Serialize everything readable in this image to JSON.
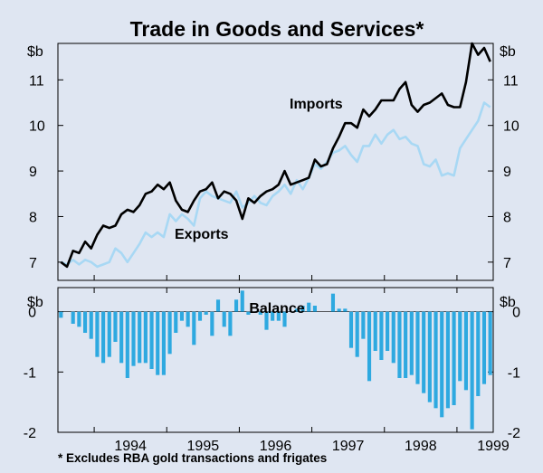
{
  "chart_data": {
    "title": "Trade in Goods and Services*",
    "footnote": "*   Excludes RBA gold transactions and frigates",
    "x_tick_labels": [
      "1994",
      "1995",
      "1996",
      "1997",
      "1998",
      "1999"
    ],
    "x_start": "1993-07",
    "x_end": "1999-07",
    "colors": {
      "imports": "#000000",
      "exports": "#a8d8f4",
      "balance": "#2ea9e0",
      "background": "#dfe6f2"
    },
    "panels": [
      {
        "type": "line",
        "unit_label": "$b",
        "ylim": [
          6.6,
          11.8
        ],
        "yticks": [
          7,
          8,
          9,
          10,
          11
        ],
        "series": [
          {
            "name": "Imports",
            "label_text": "Imports",
            "values": [
              7.0,
              6.9,
              7.25,
              7.2,
              7.45,
              7.3,
              7.6,
              7.8,
              7.75,
              7.8,
              8.05,
              8.15,
              8.1,
              8.25,
              8.5,
              8.55,
              8.7,
              8.6,
              8.75,
              8.35,
              8.15,
              8.1,
              8.35,
              8.55,
              8.6,
              8.75,
              8.4,
              8.55,
              8.5,
              8.35,
              7.95,
              8.4,
              8.3,
              8.45,
              8.55,
              8.6,
              8.7,
              9.0,
              8.7,
              8.75,
              8.8,
              8.85,
              9.25,
              9.1,
              9.15,
              9.5,
              9.75,
              10.05,
              10.05,
              9.95,
              10.35,
              10.2,
              10.35,
              10.55,
              10.55,
              10.55,
              10.8,
              10.95,
              10.45,
              10.3,
              10.45,
              10.5,
              10.6,
              10.7,
              10.45,
              10.4,
              10.4,
              10.95,
              11.8,
              11.55,
              11.7,
              11.4
            ]
          },
          {
            "name": "Exports",
            "label_text": "Exports",
            "values": [
              7.0,
              6.95,
              7.05,
              6.95,
              7.05,
              7.0,
              6.9,
              6.95,
              7.0,
              7.3,
              7.2,
              7.0,
              7.2,
              7.4,
              7.65,
              7.55,
              7.65,
              7.55,
              8.05,
              7.9,
              8.05,
              7.95,
              7.8,
              8.4,
              8.55,
              8.45,
              8.4,
              8.35,
              8.3,
              8.55,
              8.2,
              8.3,
              8.45,
              8.3,
              8.25,
              8.45,
              8.55,
              8.7,
              8.5,
              8.8,
              8.6,
              8.85,
              9.15,
              9.05,
              9.2,
              9.4,
              9.45,
              9.55,
              9.35,
              9.2,
              9.55,
              9.55,
              9.8,
              9.6,
              9.8,
              9.9,
              9.7,
              9.75,
              9.6,
              9.55,
              9.15,
              9.1,
              9.25,
              8.9,
              8.95,
              8.9,
              9.5,
              9.7,
              9.9,
              10.1,
              10.5,
              10.4
            ]
          }
        ]
      },
      {
        "type": "bar",
        "name": "Balance",
        "label_text": "Balance",
        "unit_label": "$b",
        "ylim": [
          -2,
          0.4
        ],
        "yticks": [
          0,
          -1,
          -2
        ],
        "values": [
          -0.1,
          0.0,
          -0.2,
          -0.25,
          -0.35,
          -0.45,
          -0.75,
          -0.85,
          -0.75,
          -0.5,
          -0.85,
          -1.1,
          -0.9,
          -0.85,
          -0.85,
          -0.95,
          -1.05,
          -1.05,
          -0.7,
          -0.35,
          -0.15,
          -0.25,
          -0.55,
          -0.15,
          -0.05,
          -0.4,
          0.2,
          -0.25,
          -0.4,
          0.2,
          0.35,
          -0.05,
          0.0,
          -0.05,
          -0.3,
          -0.15,
          -0.15,
          -0.25,
          0.0,
          0.05,
          0.1,
          0.15,
          0.1,
          0.0,
          0.0,
          0.3,
          0.05,
          0.05,
          -0.6,
          -0.75,
          -0.45,
          -1.15,
          -0.65,
          -0.8,
          -0.65,
          -0.85,
          -1.1,
          -1.1,
          -1.05,
          -1.2,
          -1.35,
          -1.5,
          -1.6,
          -1.75,
          -1.6,
          -1.55,
          -1.15,
          -1.3,
          -1.95,
          -1.4,
          -1.2,
          -1.05
        ]
      }
    ]
  }
}
